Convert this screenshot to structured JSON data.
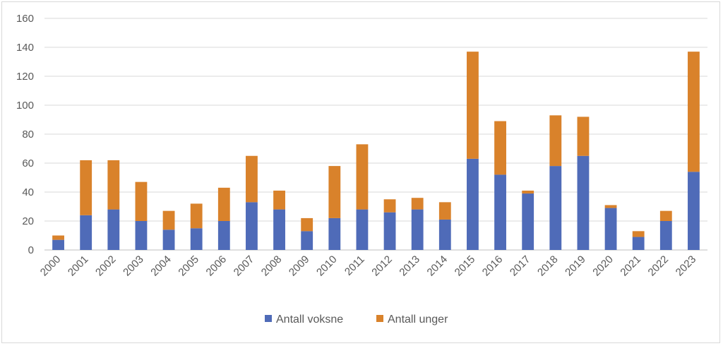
{
  "chart_data": {
    "type": "bar",
    "stacked": true,
    "categories": [
      "2000",
      "2001",
      "2002",
      "2003",
      "2004",
      "2005",
      "2006",
      "2007",
      "2008",
      "2009",
      "2010",
      "2011",
      "2012",
      "2013",
      "2014",
      "2015",
      "2016",
      "2017",
      "2018",
      "2019",
      "2020",
      "2021",
      "2022",
      "2023"
    ],
    "series": [
      {
        "name": "Antall voksne",
        "color": "#4f6bb8",
        "values": [
          7,
          24,
          28,
          20,
          14,
          15,
          20,
          33,
          28,
          13,
          22,
          28,
          26,
          28,
          21,
          63,
          52,
          39,
          58,
          65,
          29,
          9,
          20,
          54
        ]
      },
      {
        "name": "Antall unger",
        "color": "#d9822b",
        "values": [
          3,
          38,
          34,
          27,
          13,
          17,
          23,
          32,
          13,
          9,
          36,
          45,
          9,
          8,
          12,
          74,
          37,
          2,
          35,
          27,
          2,
          4,
          7,
          83
        ]
      }
    ],
    "title": "",
    "xlabel": "",
    "ylabel": "",
    "ylim": [
      0,
      160
    ],
    "yticks": [
      0,
      20,
      40,
      60,
      80,
      100,
      120,
      140,
      160
    ],
    "grid": true,
    "legend_position": "bottom"
  }
}
